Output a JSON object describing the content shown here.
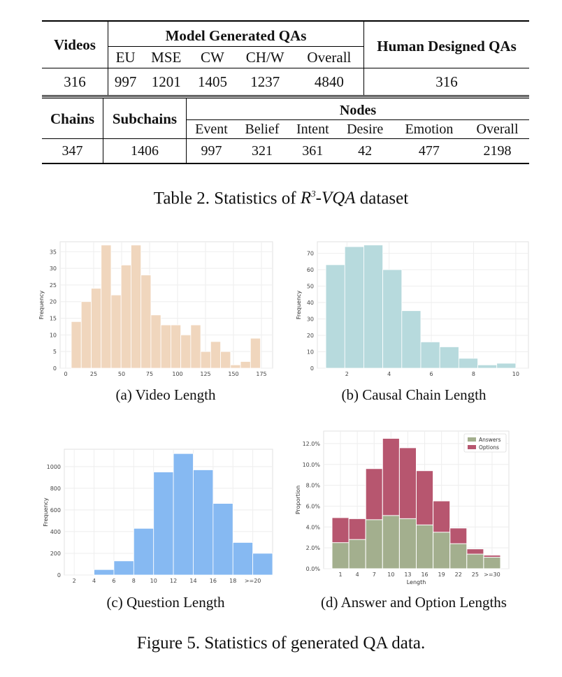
{
  "table1": {
    "h_videos": "Videos",
    "h_model": "Model Generated QAs",
    "h_human": "Human Designed QAs",
    "sub": [
      "EU",
      "MSE",
      "CW",
      "CH/W",
      "Overall"
    ],
    "row": [
      "316",
      "997",
      "1201",
      "1405",
      "1237",
      "4840",
      "316"
    ]
  },
  "table2": {
    "h_chains": "Chains",
    "h_subchains": "Subchains",
    "h_nodes": "Nodes",
    "sub": [
      "Event",
      "Belief",
      "Intent",
      "Desire",
      "Emotion",
      "Overall"
    ],
    "row": [
      "347",
      "1406",
      "997",
      "321",
      "361",
      "42",
      "477",
      "2198"
    ]
  },
  "table_caption": {
    "prefix": "Table 2. Statistics of ",
    "name": "R",
    "sup": "3",
    "name2": "-VQA",
    "suffix": " dataset"
  },
  "figure_caption": "Figure 5. Statistics of generated QA data.",
  "subcaptions": {
    "a": "(a) Video Length",
    "b": "(b) Causal Chain Length",
    "c": "(c) Question Length",
    "d": "(d) Answer and Option Lengths"
  },
  "chart_data": [
    {
      "id": "a",
      "type": "bar",
      "color": "#f0d6bd",
      "ylabel": "Frequency",
      "xlim": [
        -5,
        185
      ],
      "ylim": [
        0,
        38
      ],
      "xticks": [
        0,
        25,
        50,
        75,
        100,
        125,
        150,
        175
      ],
      "yticks": [
        0,
        5,
        10,
        15,
        20,
        25,
        30,
        35
      ],
      "bin_start": 5,
      "bin_width": 8.9,
      "values": [
        14,
        20,
        24,
        37,
        22,
        31,
        37,
        28,
        16,
        13,
        13,
        10,
        13,
        5,
        8,
        5,
        1,
        2,
        9
      ]
    },
    {
      "id": "b",
      "type": "bar",
      "color": "#b7dadd",
      "ylabel": "Frequency",
      "xlim": [
        0.6,
        10.6
      ],
      "ylim": [
        0,
        77
      ],
      "xticks": [
        2,
        4,
        6,
        8,
        10
      ],
      "yticks": [
        0,
        10,
        20,
        30,
        40,
        50,
        60,
        70
      ],
      "bin_start": 1,
      "bin_width": 0.9,
      "values": [
        63,
        74,
        75,
        60,
        35,
        16,
        13,
        6,
        2,
        3
      ]
    },
    {
      "id": "c",
      "type": "bar",
      "color": "#86b9f2",
      "ylabel": "Frequency",
      "xlim": [
        1,
        22
      ],
      "ylim": [
        0,
        1160
      ],
      "xticks": [
        "2",
        "4",
        "6",
        "8",
        "10",
        "12",
        "14",
        "16",
        "18",
        ">=20"
      ],
      "yticks": [
        0,
        200,
        400,
        600,
        800,
        1000
      ],
      "bin_start": 4,
      "bin_width": 2,
      "values": [
        50,
        130,
        430,
        950,
        1120,
        970,
        660,
        300,
        200
      ]
    },
    {
      "id": "d",
      "type": "bar",
      "xlabel": "Length",
      "ylabel": "Proportion",
      "ylim": [
        0,
        13.2
      ],
      "categories": [
        "1",
        "4",
        "7",
        "10",
        "13",
        "16",
        "19",
        "22",
        "25",
        ">=30"
      ],
      "yticks": [
        "0.0%",
        "2.0%",
        "4.0%",
        "6.0%",
        "8.0%",
        "10.0%",
        "12.0%"
      ],
      "legend": "top-right",
      "series": [
        {
          "name": "Answers",
          "color": "#a3af8e",
          "values": [
            2.5,
            2.8,
            4.7,
            5.1,
            4.8,
            4.2,
            3.5,
            2.4,
            1.4,
            1.1
          ]
        },
        {
          "name": "Options",
          "color": "#b7566f",
          "values": [
            4.9,
            4.8,
            9.6,
            12.5,
            11.6,
            9.4,
            6.5,
            3.9,
            1.9,
            1.3
          ]
        }
      ]
    }
  ]
}
